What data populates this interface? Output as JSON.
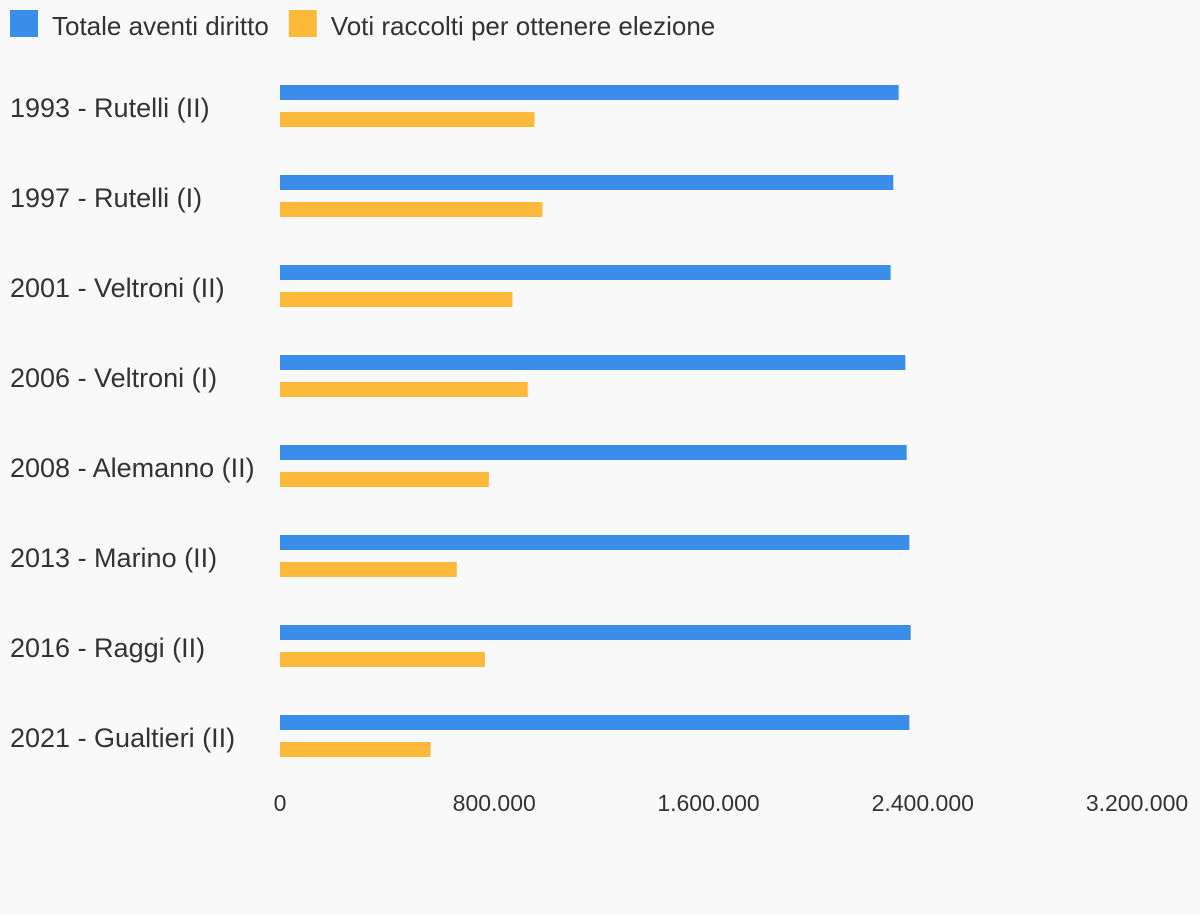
{
  "chart_data": {
    "type": "bar",
    "orientation": "horizontal",
    "categories": [
      "1993 - Rutelli (II)",
      "1997 - Rutelli (I)",
      "2001 - Veltroni (II)",
      "2006 - Veltroni (I)",
      "2008 - Alemanno (II)",
      "2013 - Marino (II)",
      "2016 - Raggi (II)",
      "2021 - Gualtieri (II)"
    ],
    "series": [
      {
        "name": "Totale aventi diritto",
        "color": "#3a8ee9",
        "values": [
          2310000,
          2290000,
          2280000,
          2335000,
          2340000,
          2350000,
          2355000,
          2350000
        ]
      },
      {
        "name": "Voti raccolti per ottenere elezione",
        "color": "#fdb93a",
        "values": [
          950000,
          980000,
          868000,
          925000,
          780000,
          660000,
          765000,
          562000
        ]
      }
    ],
    "xlim": [
      0,
      3200000
    ],
    "x_ticks": [
      0,
      800000,
      1600000,
      2400000,
      3200000
    ],
    "x_tick_labels": [
      "0",
      "800.000",
      "1.600.000",
      "2.400.000",
      "3.200.000"
    ],
    "title": "",
    "xlabel": "",
    "ylabel": "",
    "legend": "top-left",
    "grid": false
  }
}
